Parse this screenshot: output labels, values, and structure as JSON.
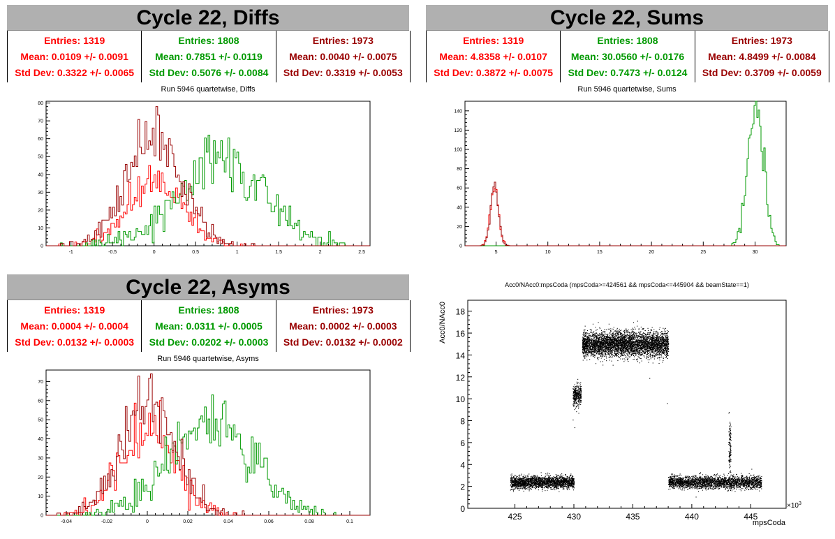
{
  "panels": {
    "diffs": {
      "title": "Cycle 22, Diffs",
      "subtitle": "Run 5946 quartetwise, Diffs",
      "stats": [
        {
          "entries": "Entries: 1319",
          "mean": "Mean: 0.0109 +/- 0.0091",
          "std": "Std Dev: 0.3322 +/- 0.0065",
          "color": "#ff0000"
        },
        {
          "entries": "Entries: 1808",
          "mean": "Mean: 0.7851 +/- 0.0119",
          "std": "Std Dev: 0.5076 +/- 0.0084",
          "color": "#009900"
        },
        {
          "entries": "Entries: 1973",
          "mean": "Mean: 0.0040 +/- 0.0075",
          "std": "Std Dev: 0.3319 +/- 0.0053",
          "color": "#990000"
        }
      ]
    },
    "sums": {
      "title": "Cycle 22, Sums",
      "subtitle": "Run 5946 quartetwise, Sums",
      "stats": [
        {
          "entries": "Entries: 1319",
          "mean": "Mean: 4.8358 +/- 0.0107",
          "std": "Std Dev: 0.3872 +/- 0.0075",
          "color": "#ff0000"
        },
        {
          "entries": "Entries: 1808",
          "mean": "Mean: 30.0560 +/- 0.0176",
          "std": "Std Dev: 0.7473 +/- 0.0124",
          "color": "#009900"
        },
        {
          "entries": "Entries: 1973",
          "mean": "Mean: 4.8499 +/- 0.0084",
          "std": "Std Dev: 0.3709 +/- 0.0059",
          "color": "#990000"
        }
      ]
    },
    "asyms": {
      "title": "Cycle 22, Asyms",
      "subtitle": "Run 5946 quartetwise, Asyms",
      "stats": [
        {
          "entries": "Entries: 1319",
          "mean": "Mean: 0.0004 +/- 0.0004",
          "std": "Std Dev: 0.0132 +/- 0.0003",
          "color": "#ff0000"
        },
        {
          "entries": "Entries: 1808",
          "mean": "Mean: 0.0311 +/- 0.0005",
          "std": "Std Dev: 0.0202 +/- 0.0003",
          "color": "#009900"
        },
        {
          "entries": "Entries: 1973",
          "mean": "Mean: 0.0002 +/- 0.0003",
          "std": "Std Dev: 0.0132 +/- 0.0002",
          "color": "#990000"
        }
      ]
    },
    "scatter": {
      "title": "Acc0/NAcc0:mpsCoda (mpsCoda>=424561 && mpsCoda<=445904 && beamState==1)",
      "xlabel": "mpsCoda",
      "ylabel": "Acc0/NAcc0",
      "xexp": "×10",
      "xexp_power": "3"
    }
  },
  "chart_data": [
    {
      "type": "histogram",
      "name": "diffs",
      "xlim": [
        -1.3,
        2.6
      ],
      "ylim": [
        0,
        81
      ],
      "xticks": [
        -1,
        -0.5,
        0,
        0.5,
        1,
        1.5,
        2,
        2.5
      ],
      "xtick_labels": [
        "-1",
        "-0.5",
        "0",
        "0.5",
        "1",
        "1.5",
        "2",
        "2.5"
      ],
      "yticks": [
        0,
        10,
        20,
        30,
        40,
        50,
        60,
        70,
        80
      ],
      "ytick_labels": [
        "0",
        "10",
        "20",
        "30",
        "40",
        "50",
        "60",
        "70",
        "80"
      ],
      "series": [
        {
          "entries": 1319,
          "mean": 0.0109,
          "std": 0.3322,
          "peak": 45,
          "color": "#ff0000"
        },
        {
          "entries": 1808,
          "mean": 0.7851,
          "std": 0.5076,
          "peak": 62,
          "color": "#009900"
        },
        {
          "entries": 1973,
          "mean": 0.004,
          "std": 0.3319,
          "peak": 78,
          "color": "#990000"
        }
      ]
    },
    {
      "type": "histogram",
      "name": "sums",
      "xlim": [
        2,
        33
      ],
      "ylim": [
        0,
        150
      ],
      "xticks": [
        5,
        10,
        15,
        20,
        25,
        30
      ],
      "xtick_labels": [
        "5",
        "10",
        "15",
        "20",
        "25",
        "30"
      ],
      "yticks": [
        0,
        20,
        40,
        60,
        80,
        100,
        120,
        140
      ],
      "ytick_labels": [
        "0",
        "20",
        "40",
        "60",
        "80",
        "100",
        "120",
        "140"
      ],
      "series": [
        {
          "entries": 1319,
          "mean": 4.8358,
          "std": 0.3872,
          "peak": 60,
          "color": "#ff0000"
        },
        {
          "entries": 1808,
          "mean": 30.056,
          "std": 0.7473,
          "peak": 150,
          "color": "#009900"
        },
        {
          "entries": 1973,
          "mean": 4.8499,
          "std": 0.3709,
          "peak": 66,
          "color": "#990000"
        }
      ]
    },
    {
      "type": "histogram",
      "name": "asyms",
      "xlim": [
        -0.05,
        0.11
      ],
      "ylim": [
        0,
        76
      ],
      "xticks": [
        -0.04,
        -0.02,
        0,
        0.02,
        0.04,
        0.06,
        0.08,
        0.1
      ],
      "xtick_labels": [
        "-0.04",
        "-0.02",
        "0",
        "0.02",
        "0.04",
        "0.06",
        "0.08",
        "0.1"
      ],
      "yticks": [
        0,
        10,
        20,
        30,
        40,
        50,
        60,
        70
      ],
      "ytick_labels": [
        "0",
        "10",
        "20",
        "30",
        "40",
        "50",
        "60",
        "70"
      ],
      "series": [
        {
          "entries": 1319,
          "mean": 0.0004,
          "std": 0.0132,
          "peak": 60,
          "color": "#ff0000"
        },
        {
          "entries": 1808,
          "mean": 0.0311,
          "std": 0.0202,
          "peak": 63,
          "color": "#009900"
        },
        {
          "entries": 1973,
          "mean": 0.0002,
          "std": 0.0132,
          "peak": 74,
          "color": "#990000"
        }
      ]
    },
    {
      "type": "scatter",
      "name": "acc0-vs-mpscoda",
      "xlim": [
        421,
        448
      ],
      "ylim": [
        0,
        19
      ],
      "xticks": [
        425,
        430,
        435,
        440,
        445
      ],
      "xtick_labels": [
        "425",
        "430",
        "435",
        "440",
        "445"
      ],
      "yticks": [
        0,
        2,
        4,
        6,
        8,
        10,
        12,
        14,
        16,
        18
      ],
      "ytick_labels": [
        "0",
        "2",
        "4",
        "6",
        "8",
        "10",
        "12",
        "14",
        "16",
        "18"
      ],
      "clusters": [
        {
          "x": [
            424.6,
            430.0
          ],
          "y_center": 2.4,
          "y_spread": 0.35
        },
        {
          "x": [
            429.9,
            430.6
          ],
          "y_center": 10.3,
          "y_spread": 0.6
        },
        {
          "x": [
            430.7,
            438.0
          ],
          "y_center": 15.0,
          "y_spread": 0.7
        },
        {
          "x": [
            438.0,
            445.9
          ],
          "y_center": 2.4,
          "y_spread": 0.35
        },
        {
          "x": [
            443.1,
            443.3
          ],
          "y_center": 5.5,
          "y_spread": 1.6
        }
      ],
      "color": "#000000"
    }
  ]
}
